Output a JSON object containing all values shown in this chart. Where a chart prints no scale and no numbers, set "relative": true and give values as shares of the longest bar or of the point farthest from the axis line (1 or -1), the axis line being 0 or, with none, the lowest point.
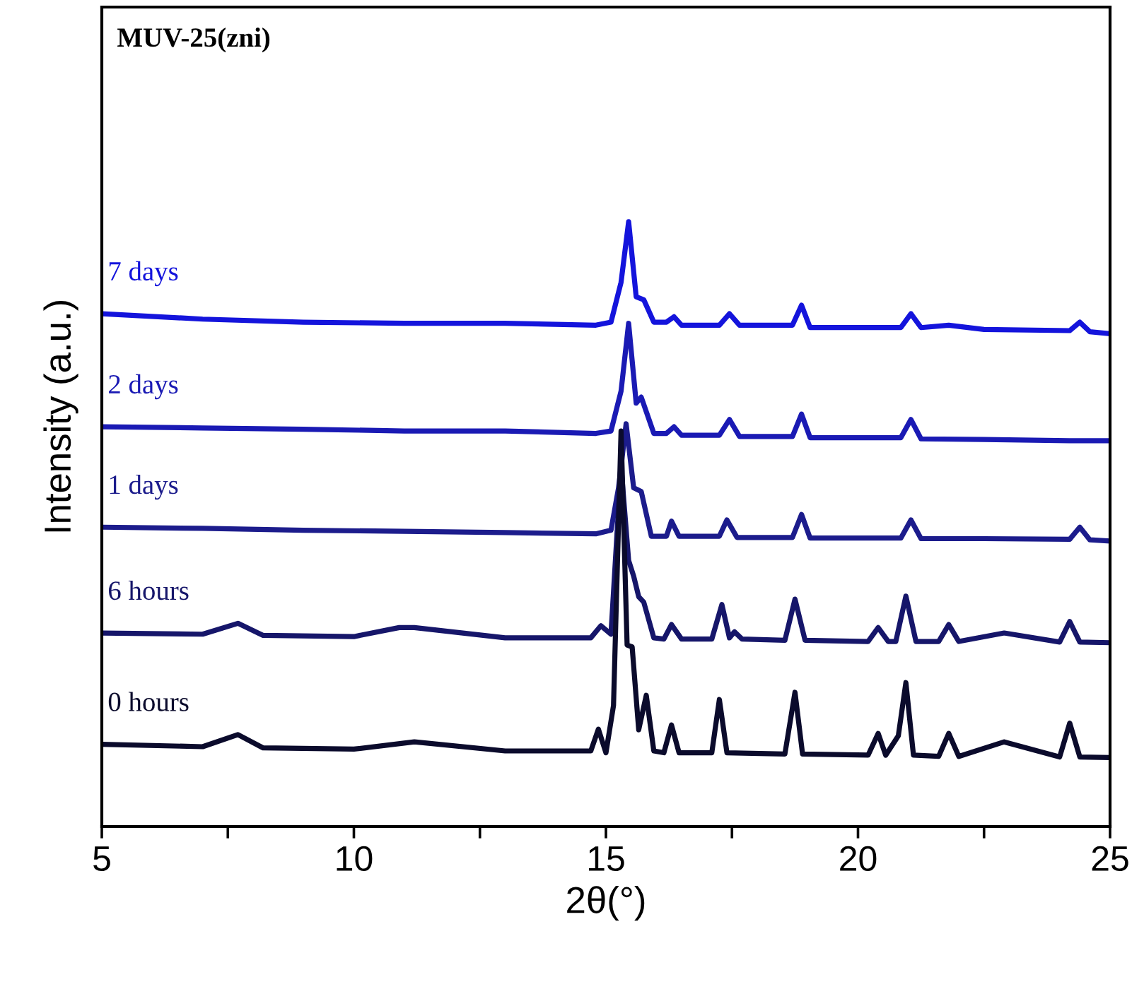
{
  "chart_data": {
    "type": "line",
    "title": "MUV-25(zni)",
    "xlabel": "2θ(°)",
    "ylabel": "Intensity (a.u.)",
    "relative": true,
    "legend": false,
    "grid": false,
    "tick_labels": "x",
    "xlim": [
      5,
      25
    ],
    "xticks": [
      5,
      {
        "value": 7.5,
        "label": null
      },
      10,
      {
        "value": 12.5,
        "label": null
      },
      15,
      {
        "value": 17.5,
        "label": null
      },
      20,
      {
        "value": 22.5,
        "label": null
      },
      25
    ],
    "series": [
      {
        "name": "7 days",
        "color": "#1414dc",
        "x": [
          5,
          7,
          9,
          11,
          13,
          14.8,
          15.1,
          15.3,
          15.45,
          15.6,
          15.75,
          15.95,
          16.2,
          16.35,
          16.5,
          17.25,
          17.45,
          17.65,
          18.7,
          18.88,
          19.05,
          20.85,
          21.05,
          21.25,
          21.8,
          22.5,
          24.2,
          24.4,
          24.6,
          25
        ],
        "values": [
          0.848,
          0.839,
          0.834,
          0.832,
          0.832,
          0.829,
          0.834,
          0.9,
          1.0,
          0.876,
          0.871,
          0.834,
          0.834,
          0.843,
          0.829,
          0.829,
          0.848,
          0.829,
          0.829,
          0.862,
          0.825,
          0.825,
          0.848,
          0.825,
          0.829,
          0.822,
          0.82,
          0.834,
          0.818,
          0.815
        ]
      },
      {
        "name": "2 days",
        "color": "#1a1ab4",
        "x": [
          5,
          7,
          9,
          11,
          13,
          14.8,
          15.1,
          15.3,
          15.45,
          15.6,
          15.7,
          15.95,
          16.2,
          16.35,
          16.5,
          17.25,
          17.45,
          17.65,
          18.7,
          18.88,
          19.05,
          20.85,
          21.05,
          21.25,
          22.5,
          24.2,
          25
        ],
        "values": [
          0.661,
          0.659,
          0.657,
          0.654,
          0.654,
          0.65,
          0.654,
          0.72,
          0.832,
          0.7,
          0.71,
          0.65,
          0.65,
          0.661,
          0.647,
          0.647,
          0.673,
          0.645,
          0.645,
          0.682,
          0.643,
          0.643,
          0.673,
          0.641,
          0.64,
          0.638,
          0.638
        ]
      },
      {
        "name": "1 days",
        "color": "#1c1c8c",
        "x": [
          5,
          7,
          9,
          11,
          13,
          14.8,
          15.1,
          15.25,
          15.4,
          15.55,
          15.7,
          15.9,
          16.2,
          16.3,
          16.45,
          17.25,
          17.4,
          17.6,
          18.7,
          18.88,
          19.05,
          20.85,
          21.05,
          21.25,
          22.5,
          24.2,
          24.4,
          24.6,
          25
        ],
        "values": [
          0.495,
          0.493,
          0.49,
          0.488,
          0.486,
          0.484,
          0.49,
          0.56,
          0.666,
          0.56,
          0.554,
          0.48,
          0.48,
          0.505,
          0.48,
          0.48,
          0.507,
          0.478,
          0.478,
          0.516,
          0.477,
          0.477,
          0.507,
          0.476,
          0.476,
          0.475,
          0.495,
          0.474,
          0.472
        ]
      },
      {
        "name": "6 hours",
        "color": "#16166a",
        "x": [
          5,
          7,
          7.7,
          8.2,
          10,
          10.9,
          11.2,
          13,
          14.7,
          14.9,
          15.1,
          15.3,
          15.45,
          15.55,
          15.65,
          15.75,
          15.95,
          16.15,
          16.3,
          16.5,
          17.1,
          17.3,
          17.45,
          17.55,
          17.7,
          18.55,
          18.75,
          18.95,
          20.2,
          20.4,
          20.6,
          20.75,
          20.95,
          21.15,
          21.6,
          21.8,
          22,
          22.9,
          24,
          24.2,
          24.4,
          25
        ],
        "values": [
          0.32,
          0.318,
          0.336,
          0.316,
          0.314,
          0.329,
          0.329,
          0.312,
          0.312,
          0.332,
          0.318,
          0.596,
          0.44,
          0.414,
          0.38,
          0.371,
          0.312,
          0.31,
          0.334,
          0.31,
          0.31,
          0.367,
          0.312,
          0.322,
          0.31,
          0.308,
          0.376,
          0.308,
          0.306,
          0.329,
          0.306,
          0.306,
          0.381,
          0.306,
          0.306,
          0.334,
          0.306,
          0.32,
          0.305,
          0.339,
          0.305,
          0.304
        ]
      },
      {
        "name": "0 hours",
        "color": "#0b0b2c",
        "x": [
          5,
          7,
          7.7,
          8.2,
          10,
          11.2,
          13,
          14.7,
          14.85,
          15.0,
          15.15,
          15.3,
          15.42,
          15.52,
          15.65,
          15.8,
          15.95,
          16.15,
          16.3,
          16.45,
          17.1,
          17.25,
          17.4,
          18.55,
          18.75,
          18.9,
          20.2,
          20.4,
          20.55,
          20.8,
          20.95,
          21.1,
          21.6,
          21.8,
          22,
          22.9,
          24,
          24.2,
          24.4,
          25
        ],
        "values": [
          0.136,
          0.132,
          0.152,
          0.13,
          0.128,
          0.14,
          0.125,
          0.125,
          0.161,
          0.122,
          0.2,
          0.654,
          0.3,
          0.297,
          0.16,
          0.217,
          0.125,
          0.122,
          0.168,
          0.122,
          0.122,
          0.21,
          0.122,
          0.12,
          0.222,
          0.12,
          0.118,
          0.154,
          0.118,
          0.15,
          0.238,
          0.118,
          0.116,
          0.154,
          0.116,
          0.14,
          0.115,
          0.171,
          0.115,
          0.114
        ]
      }
    ]
  }
}
